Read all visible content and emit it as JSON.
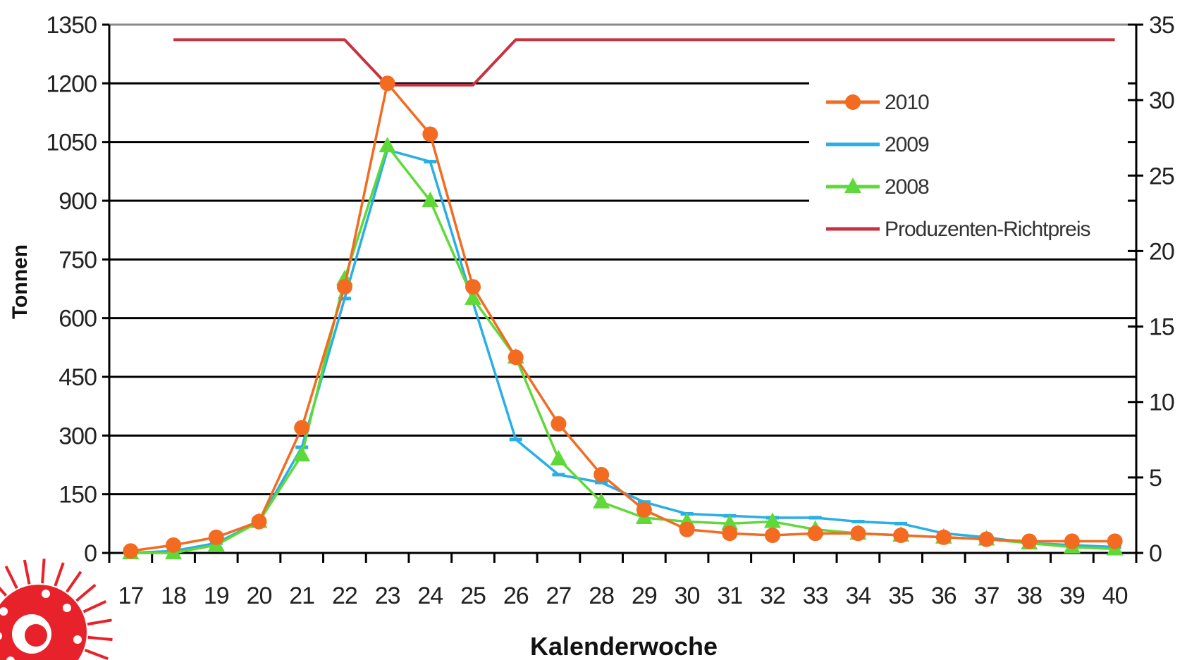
{
  "chart_data": {
    "type": "line",
    "xlabel": "Kalenderwoche",
    "ylabel": "Tonnen",
    "categories": [
      "17",
      "18",
      "19",
      "20",
      "21",
      "22",
      "23",
      "24",
      "25",
      "26",
      "27",
      "28",
      "29",
      "30",
      "31",
      "32",
      "33",
      "34",
      "35",
      "36",
      "37",
      "38",
      "39",
      "40"
    ],
    "ylim": [
      0,
      1350
    ],
    "yticks": [
      "0",
      "150",
      "300",
      "450",
      "600",
      "750",
      "900",
      "1050",
      "1200",
      "1350"
    ],
    "y2lim": [
      0,
      35
    ],
    "y2ticks": [
      "0",
      "5",
      "10",
      "15",
      "20",
      "25",
      "30",
      "35"
    ],
    "grid": true,
    "legend_position": "top-right",
    "series": [
      {
        "name": "2010",
        "color": "#f26b21",
        "marker": "circle",
        "axis": "left",
        "values": [
          5,
          20,
          40,
          80,
          320,
          680,
          1200,
          1070,
          680,
          500,
          330,
          200,
          110,
          60,
          50,
          45,
          50,
          50,
          45,
          40,
          35,
          30,
          30,
          30
        ]
      },
      {
        "name": "2009",
        "color": "#29aee6",
        "marker": "dash",
        "axis": "left",
        "values": [
          0,
          5,
          25,
          80,
          270,
          650,
          1030,
          1000,
          640,
          290,
          200,
          180,
          130,
          100,
          95,
          90,
          90,
          80,
          75,
          50,
          40,
          25,
          20,
          15
        ]
      },
      {
        "name": "2008",
        "color": "#5fd93a",
        "marker": "triangle",
        "axis": "left",
        "values": [
          0,
          0,
          20,
          80,
          250,
          700,
          1040,
          900,
          650,
          500,
          240,
          130,
          90,
          80,
          75,
          80,
          60,
          50,
          45,
          40,
          35,
          25,
          15,
          10
        ]
      },
      {
        "name": "Produzenten-Richtpreis",
        "color": "#c8323f",
        "marker": "none",
        "axis": "right",
        "x": [
          18,
          22,
          23,
          25,
          26,
          40
        ],
        "values": [
          34,
          34,
          31,
          31,
          34,
          34
        ]
      }
    ]
  }
}
